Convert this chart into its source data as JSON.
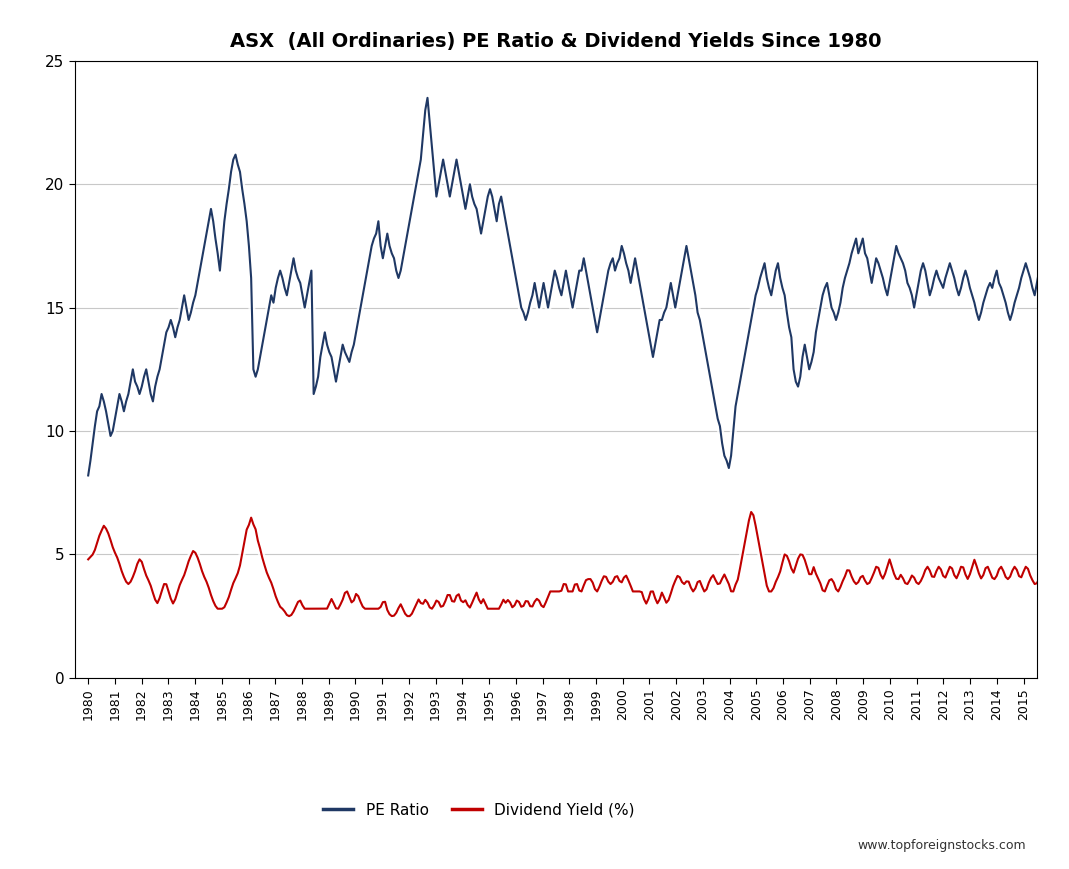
{
  "title": "ASX  (All Ordinaries) PE Ratio & Dividend Yields Since 1980",
  "title_fontsize": 14,
  "watermark": "www.topforeignstocks.com",
  "ylim": [
    0,
    25
  ],
  "yticks": [
    0,
    5,
    10,
    15,
    20,
    25
  ],
  "pe_color": "#1F3864",
  "div_color": "#C00000",
  "legend_labels": [
    "PE Ratio",
    "Dividend Yield (%)"
  ],
  "background_color": "#FFFFFF",
  "grid_color": "#C8C8C8",
  "x_start_year": 1980,
  "x_end_year": 2016,
  "pe_data": [
    8.2,
    8.8,
    9.5,
    10.2,
    10.8,
    11.0,
    11.5,
    11.2,
    10.8,
    10.3,
    9.8,
    10.0,
    10.5,
    11.0,
    11.5,
    11.2,
    10.8,
    11.2,
    11.5,
    12.0,
    12.5,
    12.0,
    11.8,
    11.5,
    11.8,
    12.2,
    12.5,
    12.0,
    11.5,
    11.2,
    11.8,
    12.2,
    12.5,
    13.0,
    13.5,
    14.0,
    14.2,
    14.5,
    14.2,
    13.8,
    14.2,
    14.5,
    15.0,
    15.5,
    15.0,
    14.5,
    14.8,
    15.2,
    15.5,
    16.0,
    16.5,
    17.0,
    17.5,
    18.0,
    18.5,
    19.0,
    18.5,
    17.8,
    17.2,
    16.5,
    17.5,
    18.5,
    19.2,
    19.8,
    20.5,
    21.0,
    21.2,
    20.8,
    20.5,
    19.8,
    19.2,
    18.5,
    17.5,
    16.2,
    12.5,
    12.2,
    12.5,
    13.0,
    13.5,
    14.0,
    14.5,
    15.0,
    15.5,
    15.2,
    15.8,
    16.2,
    16.5,
    16.2,
    15.8,
    15.5,
    16.0,
    16.5,
    17.0,
    16.5,
    16.2,
    16.0,
    15.5,
    15.0,
    15.5,
    16.0,
    16.5,
    11.5,
    11.8,
    12.2,
    13.0,
    13.5,
    14.0,
    13.5,
    13.2,
    13.0,
    12.5,
    12.0,
    12.5,
    13.0,
    13.5,
    13.2,
    13.0,
    12.8,
    13.2,
    13.5,
    14.0,
    14.5,
    15.0,
    15.5,
    16.0,
    16.5,
    17.0,
    17.5,
    17.8,
    18.0,
    18.5,
    17.5,
    17.0,
    17.5,
    18.0,
    17.5,
    17.2,
    17.0,
    16.5,
    16.2,
    16.5,
    17.0,
    17.5,
    18.0,
    18.5,
    19.0,
    19.5,
    20.0,
    20.5,
    21.0,
    22.0,
    23.0,
    23.5,
    22.5,
    21.5,
    20.5,
    19.5,
    20.0,
    20.5,
    21.0,
    20.5,
    20.0,
    19.5,
    20.0,
    20.5,
    21.0,
    20.5,
    20.0,
    19.5,
    19.0,
    19.5,
    20.0,
    19.5,
    19.2,
    19.0,
    18.5,
    18.0,
    18.5,
    19.0,
    19.5,
    19.8,
    19.5,
    19.0,
    18.5,
    19.2,
    19.5,
    19.0,
    18.5,
    18.0,
    17.5,
    17.0,
    16.5,
    16.0,
    15.5,
    15.0,
    14.8,
    14.5,
    14.8,
    15.2,
    15.5,
    16.0,
    15.5,
    15.0,
    15.5,
    16.0,
    15.5,
    15.0,
    15.5,
    16.0,
    16.5,
    16.2,
    15.8,
    15.5,
    16.0,
    16.5,
    16.0,
    15.5,
    15.0,
    15.5,
    16.0,
    16.5,
    16.5,
    17.0,
    16.5,
    16.0,
    15.5,
    15.0,
    14.5,
    14.0,
    14.5,
    15.0,
    15.5,
    16.0,
    16.5,
    16.8,
    17.0,
    16.5,
    16.8,
    17.0,
    17.5,
    17.2,
    16.8,
    16.5,
    16.0,
    16.5,
    17.0,
    16.5,
    16.0,
    15.5,
    15.0,
    14.5,
    14.0,
    13.5,
    13.0,
    13.5,
    14.0,
    14.5,
    14.5,
    14.8,
    15.0,
    15.5,
    16.0,
    15.5,
    15.0,
    15.5,
    16.0,
    16.5,
    17.0,
    17.5,
    17.0,
    16.5,
    16.0,
    15.5,
    14.8,
    14.5,
    14.0,
    13.5,
    13.0,
    12.5,
    12.0,
    11.5,
    11.0,
    10.5,
    10.2,
    9.5,
    9.0,
    8.8,
    8.5,
    9.0,
    10.0,
    11.0,
    11.5,
    12.0,
    12.5,
    13.0,
    13.5,
    14.0,
    14.5,
    15.0,
    15.5,
    15.8,
    16.2,
    16.5,
    16.8,
    16.2,
    15.8,
    15.5,
    16.0,
    16.5,
    16.8,
    16.2,
    15.8,
    15.5,
    14.8,
    14.2,
    13.8,
    12.5,
    12.0,
    11.8,
    12.2,
    13.0,
    13.5,
    13.0,
    12.5,
    12.8,
    13.2,
    14.0,
    14.5,
    15.0,
    15.5,
    15.8,
    16.0,
    15.5,
    15.0,
    14.8,
    14.5,
    14.8,
    15.2,
    15.8,
    16.2,
    16.5,
    16.8,
    17.2,
    17.5,
    17.8,
    17.2,
    17.5,
    17.8,
    17.2,
    17.0,
    16.5,
    16.0,
    16.5,
    17.0,
    16.8,
    16.5,
    16.2,
    15.8,
    15.5,
    16.0,
    16.5,
    17.0,
    17.5,
    17.2,
    17.0,
    16.8,
    16.5,
    16.0,
    15.8,
    15.5,
    15.0,
    15.5,
    16.0,
    16.5,
    16.8,
    16.5,
    16.0,
    15.5,
    15.8,
    16.2,
    16.5,
    16.2,
    16.0,
    15.8,
    16.2,
    16.5,
    16.8,
    16.5,
    16.2,
    15.8,
    15.5,
    15.8,
    16.2,
    16.5,
    16.2,
    15.8,
    15.5,
    15.2,
    14.8,
    14.5,
    14.8,
    15.2,
    15.5,
    15.8,
    16.0,
    15.8,
    16.2,
    16.5,
    16.0,
    15.8,
    15.5,
    15.2,
    14.8,
    14.5,
    14.8,
    15.2,
    15.5,
    15.8,
    16.2,
    16.5,
    16.8,
    16.5,
    16.2,
    15.8,
    15.5,
    16.0,
    16.5,
    16.8,
    16.2,
    15.8,
    15.5,
    16.0
  ],
  "div_data": [
    4.8,
    4.9,
    5.0,
    5.2,
    5.5,
    5.8,
    6.0,
    6.2,
    6.0,
    5.8,
    5.5,
    5.2,
    5.0,
    4.8,
    4.5,
    4.2,
    4.0,
    3.8,
    3.8,
    4.0,
    4.2,
    4.5,
    4.8,
    4.8,
    4.5,
    4.2,
    4.0,
    3.8,
    3.5,
    3.2,
    3.0,
    3.2,
    3.5,
    3.8,
    3.8,
    3.5,
    3.2,
    3.0,
    3.2,
    3.5,
    3.8,
    4.0,
    4.2,
    4.5,
    4.8,
    5.0,
    5.2,
    5.0,
    4.8,
    4.5,
    4.2,
    4.0,
    3.8,
    3.5,
    3.2,
    3.0,
    2.8,
    2.8,
    2.8,
    2.8,
    3.0,
    3.2,
    3.5,
    3.8,
    4.0,
    4.2,
    4.5,
    5.0,
    5.5,
    6.0,
    6.2,
    6.5,
    6.2,
    6.0,
    5.5,
    5.2,
    4.8,
    4.5,
    4.2,
    4.0,
    3.8,
    3.5,
    3.2,
    3.0,
    2.8,
    2.8,
    2.6,
    2.5,
    2.5,
    2.6,
    2.8,
    3.0,
    3.2,
    3.0,
    2.8,
    2.8,
    2.8,
    2.8,
    2.8,
    2.8,
    2.8,
    2.8,
    2.8,
    2.8,
    2.8,
    3.0,
    3.2,
    3.0,
    2.8,
    2.8,
    3.0,
    3.2,
    3.5,
    3.5,
    3.2,
    3.0,
    3.2,
    3.5,
    3.2,
    3.0,
    2.8,
    2.8,
    2.8,
    2.8,
    2.8,
    2.8,
    2.8,
    2.8,
    3.0,
    3.2,
    2.8,
    2.6,
    2.5,
    2.5,
    2.6,
    2.8,
    3.0,
    2.8,
    2.6,
    2.5,
    2.5,
    2.6,
    2.8,
    3.0,
    3.2,
    3.0,
    3.0,
    3.2,
    3.0,
    2.8,
    2.8,
    3.0,
    3.2,
    3.0,
    2.8,
    3.0,
    3.2,
    3.5,
    3.2,
    3.0,
    3.2,
    3.5,
    3.2,
    3.0,
    3.2,
    3.0,
    2.8,
    3.0,
    3.2,
    3.5,
    3.2,
    3.0,
    3.2,
    3.0,
    2.8,
    2.8,
    2.8,
    2.8,
    2.8,
    2.8,
    3.0,
    3.2,
    3.0,
    3.2,
    3.0,
    2.8,
    3.0,
    3.2,
    3.0,
    2.8,
    3.0,
    3.2,
    3.0,
    2.8,
    3.0,
    3.2,
    3.2,
    3.0,
    2.8,
    3.0,
    3.2,
    3.5,
    3.5,
    3.5,
    3.5,
    3.5,
    3.5,
    3.8,
    3.8,
    3.5,
    3.5,
    3.5,
    3.8,
    3.8,
    3.5,
    3.5,
    3.8,
    4.0,
    4.0,
    4.0,
    3.8,
    3.5,
    3.5,
    3.8,
    4.0,
    4.2,
    4.0,
    3.8,
    3.8,
    4.0,
    4.2,
    4.0,
    3.8,
    4.0,
    4.2,
    4.0,
    3.8,
    3.5,
    3.5,
    3.5,
    3.5,
    3.5,
    3.2,
    3.0,
    3.2,
    3.5,
    3.5,
    3.2,
    3.0,
    3.2,
    3.5,
    3.2,
    3.0,
    3.2,
    3.5,
    3.8,
    4.0,
    4.2,
    4.0,
    3.8,
    3.8,
    4.0,
    3.8,
    3.5,
    3.5,
    3.8,
    4.0,
    3.8,
    3.5,
    3.5,
    3.8,
    4.0,
    4.2,
    4.0,
    3.8,
    3.8,
    4.0,
    4.2,
    4.0,
    3.8,
    3.5,
    3.5,
    3.8,
    4.0,
    4.5,
    5.0,
    5.5,
    6.0,
    6.5,
    6.8,
    6.5,
    6.0,
    5.5,
    5.0,
    4.5,
    4.0,
    3.5,
    3.5,
    3.5,
    3.8,
    4.0,
    4.2,
    4.5,
    5.0,
    5.0,
    4.8,
    4.5,
    4.2,
    4.5,
    4.8,
    5.0,
    5.0,
    4.8,
    4.5,
    4.2,
    4.2,
    4.5,
    4.2,
    4.0,
    3.8,
    3.5,
    3.5,
    3.8,
    4.0,
    4.0,
    3.8,
    3.5,
    3.5,
    3.8,
    4.0,
    4.2,
    4.5,
    4.2,
    4.0,
    3.8,
    3.8,
    4.0,
    4.2,
    4.0,
    3.8,
    3.8,
    4.0,
    4.2,
    4.5,
    4.5,
    4.2,
    4.0,
    4.2,
    4.5,
    4.8,
    4.5,
    4.2,
    4.0,
    4.0,
    4.2,
    4.0,
    3.8,
    3.8,
    4.0,
    4.2,
    4.0,
    3.8,
    3.8,
    4.0,
    4.2,
    4.5,
    4.5,
    4.2,
    4.0,
    4.2,
    4.5,
    4.5,
    4.2,
    4.0,
    4.2,
    4.5,
    4.5,
    4.2,
    4.0,
    4.2,
    4.5,
    4.5,
    4.2,
    4.0,
    4.2,
    4.5,
    4.8,
    4.5,
    4.2,
    4.0,
    4.2,
    4.5,
    4.5,
    4.2,
    4.0,
    4.0,
    4.2,
    4.5,
    4.5,
    4.2,
    4.0,
    4.0,
    4.2,
    4.5,
    4.5,
    4.2,
    4.0,
    4.2,
    4.5,
    4.5,
    4.2,
    4.0,
    3.8,
    3.8,
    4.0,
    4.2,
    4.5,
    4.5,
    4.2,
    4.0
  ]
}
